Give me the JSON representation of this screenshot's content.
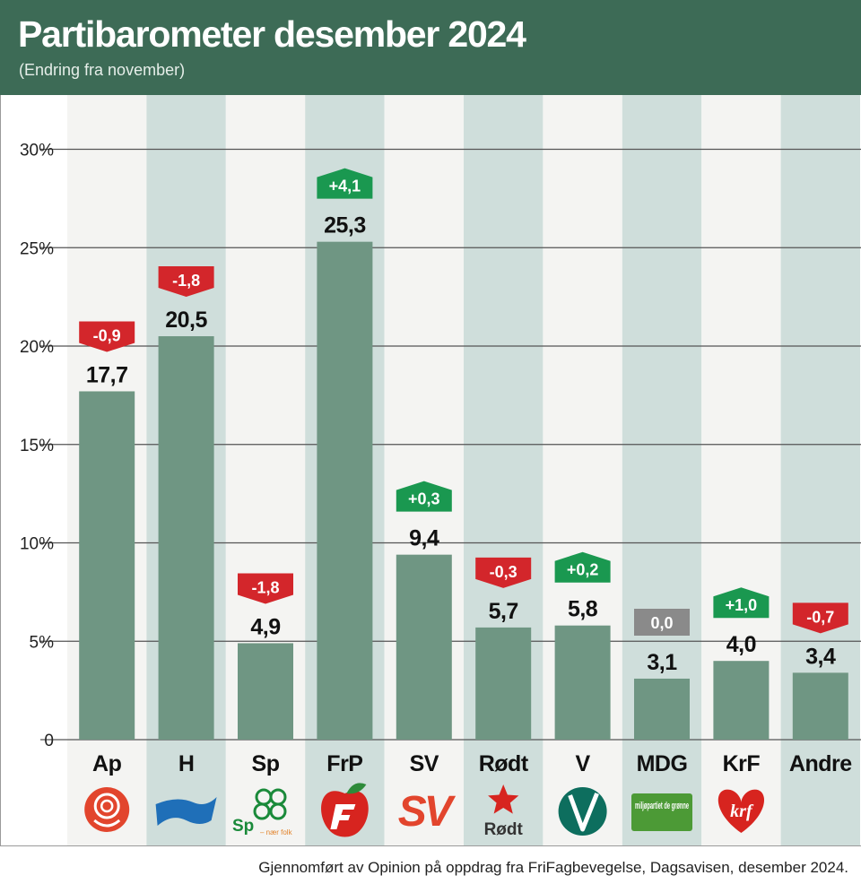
{
  "header": {
    "title": "Partibarometer desember 2024",
    "subtitle": "(Endring fra november)"
  },
  "source": "Gjennomført av Opinion på oppdrag fra FriFagbevegelse, Dagsavisen, desember 2024.",
  "colors": {
    "header_bg": "#3d6b56",
    "bar": "#6f9683",
    "col_light": "#f4f4f2",
    "col_dark": "#cfdedb",
    "up": "#1a9850",
    "down": "#d3262b",
    "neutral": "#8a8a8a"
  },
  "chart_data": {
    "type": "bar",
    "title": "Partibarometer desember 2024",
    "subtitle": "(Endring fra november)",
    "categories": [
      "Ap",
      "H",
      "Sp",
      "FrP",
      "SV",
      "Rødt",
      "V",
      "MDG",
      "KrF",
      "Andre"
    ],
    "values": [
      17.7,
      20.5,
      4.9,
      25.3,
      9.4,
      5.7,
      5.8,
      3.1,
      4.0,
      3.4
    ],
    "value_labels": [
      "17,7",
      "20,5",
      "4,9",
      "25,3",
      "9,4",
      "5,7",
      "5,8",
      "3,1",
      "4,0",
      "3,4"
    ],
    "changes": [
      -0.9,
      -1.8,
      -1.8,
      4.1,
      0.3,
      -0.3,
      0.2,
      0.0,
      1.0,
      -0.7
    ],
    "change_labels": [
      "-0,9",
      "-1,8",
      "-1,8",
      "+4,1",
      "+0,3",
      "-0,3",
      "+0,2",
      "0,0",
      "+1,0",
      "-0,7"
    ],
    "ylim": [
      0,
      30
    ],
    "yticks": [
      0,
      5,
      10,
      15,
      20,
      25,
      30
    ],
    "ytick_labels": [
      "0",
      "5%",
      "10%",
      "15%",
      "20%",
      "25%",
      "30%"
    ],
    "grid": true,
    "logos": [
      {
        "icon": "rose-icon",
        "color": "#e2452d"
      },
      {
        "icon": "flag-icon",
        "color": "#1f6fb8"
      },
      {
        "icon": "clover-icon",
        "color": "#1a8a3a",
        "text": "Sp",
        "tagline": "– nær folk"
      },
      {
        "icon": "apple-icon",
        "color": "#d7241f"
      },
      {
        "icon": "sv-icon",
        "color": "#e2452d",
        "text": "SV"
      },
      {
        "icon": "star-icon",
        "color": "#d7241f",
        "text": "Rødt"
      },
      {
        "icon": "v-circle-icon",
        "color": "#0d6e5e"
      },
      {
        "icon": "mdg-icon",
        "color": "#4c9a36",
        "text": "miljøpartiet de grønne"
      },
      {
        "icon": "heart-icon",
        "color": "#d7241f",
        "text": "krf"
      },
      {
        "icon": "",
        "color": ""
      }
    ]
  }
}
